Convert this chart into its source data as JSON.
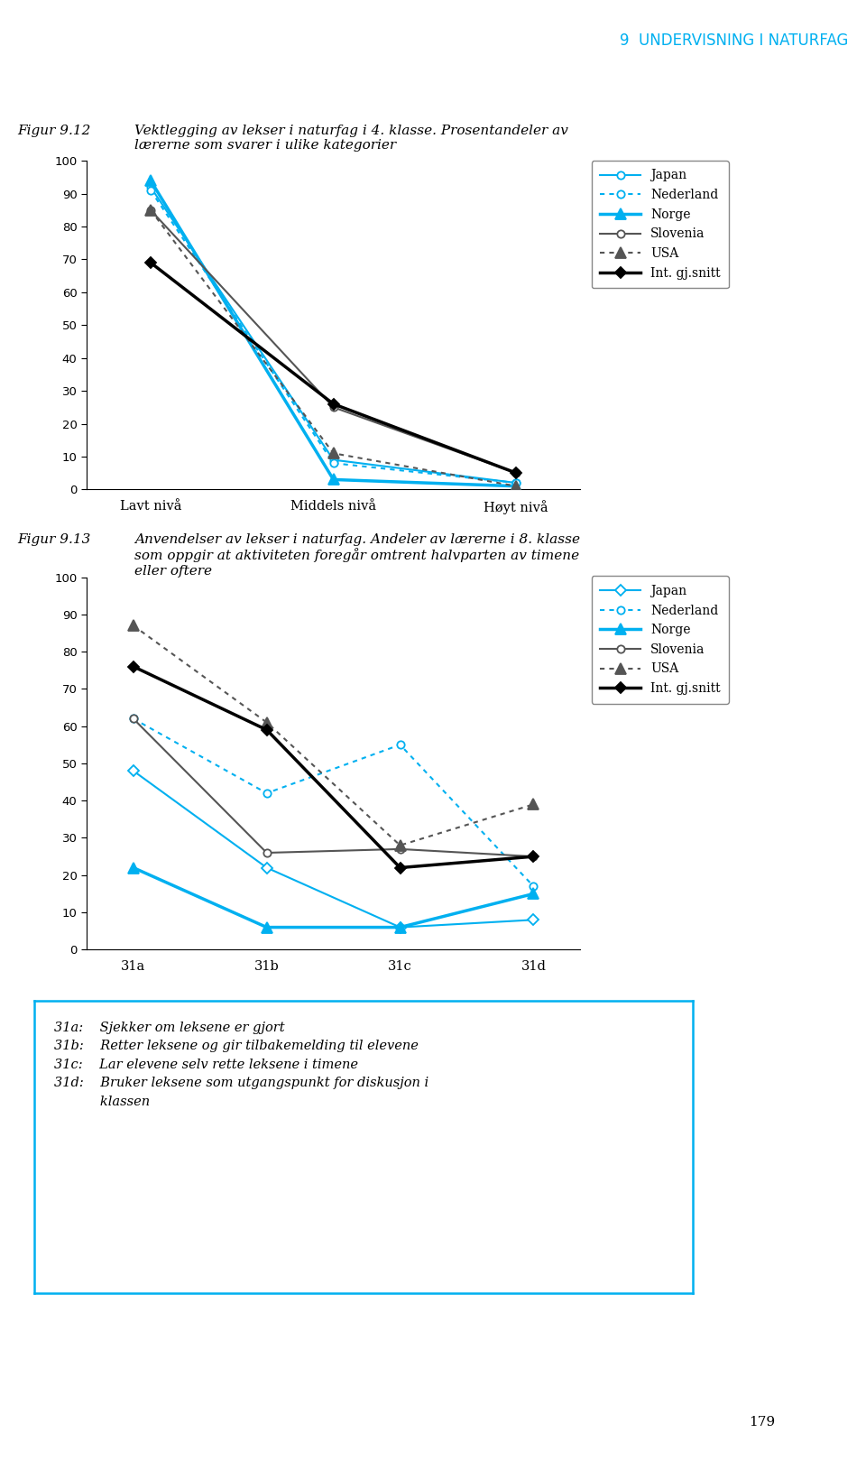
{
  "header_num": "9",
  "header_text": "Undervisning i naturfag",
  "fig1": {
    "fig_label": "Figur 9.12",
    "caption_line1": "Vektlegging av lekser i naturfag i 4. klasse. Prosentandeler av",
    "caption_line2": "lærerne som svarer i ulike kategorier",
    "x_labels": [
      "Lavt nivå",
      "Middels nivå",
      "Høyt nivå"
    ],
    "ylim": [
      0,
      100
    ],
    "yticks": [
      0,
      10,
      20,
      30,
      40,
      50,
      60,
      70,
      80,
      90,
      100
    ],
    "series": {
      "Japan": {
        "color": "#00B0F0",
        "linestyle": "solid",
        "marker": "o",
        "markersize": 6,
        "markerfacecolor": "white",
        "linewidth": 1.5,
        "values": [
          92,
          9,
          2
        ]
      },
      "Nederland": {
        "color": "#00B0F0",
        "linestyle": "dotted",
        "marker": "o",
        "markersize": 6,
        "markerfacecolor": "white",
        "linewidth": 1.5,
        "values": [
          91,
          8,
          2
        ]
      },
      "Norge": {
        "color": "#00B0F0",
        "linestyle": "solid",
        "marker": "^",
        "markersize": 8,
        "markerfacecolor": "#00B0F0",
        "linewidth": 2.5,
        "values": [
          94,
          3,
          1
        ]
      },
      "Slovenia": {
        "color": "#555555",
        "linestyle": "solid",
        "marker": "o",
        "markersize": 6,
        "markerfacecolor": "white",
        "linewidth": 1.5,
        "values": [
          85,
          25,
          5
        ]
      },
      "USA": {
        "color": "#555555",
        "linestyle": "dotted",
        "marker": "^",
        "markersize": 8,
        "markerfacecolor": "#555555",
        "linewidth": 1.5,
        "values": [
          85,
          11,
          1
        ]
      },
      "Int. gj.snitt": {
        "color": "#000000",
        "linestyle": "solid",
        "marker": "D",
        "markersize": 6,
        "markerfacecolor": "#000000",
        "linewidth": 2.5,
        "values": [
          69,
          26,
          5
        ]
      }
    }
  },
  "fig2": {
    "fig_label": "Figur 9.13",
    "caption_line1": "Anvendelser av lekser i naturfag. Andeler av lærerne i 8. klasse",
    "caption_line2": "som oppgir at aktiviteten foregår omtrent halvparten av timene",
    "caption_line3": "eller oftere",
    "x_labels": [
      "31a",
      "31b",
      "31c",
      "31d"
    ],
    "ylim": [
      0,
      100
    ],
    "yticks": [
      0,
      10,
      20,
      30,
      40,
      50,
      60,
      70,
      80,
      90,
      100
    ],
    "series": {
      "Japan": {
        "color": "#00B0F0",
        "linestyle": "solid",
        "marker": "D",
        "markersize": 6,
        "markerfacecolor": "white",
        "linewidth": 1.5,
        "values": [
          48,
          22,
          6,
          8
        ]
      },
      "Nederland": {
        "color": "#00B0F0",
        "linestyle": "dotted",
        "marker": "o",
        "markersize": 6,
        "markerfacecolor": "white",
        "linewidth": 1.5,
        "values": [
          62,
          42,
          55,
          17
        ]
      },
      "Norge": {
        "color": "#00B0F0",
        "linestyle": "solid",
        "marker": "^",
        "markersize": 8,
        "markerfacecolor": "#00B0F0",
        "linewidth": 2.5,
        "values": [
          22,
          6,
          6,
          15
        ]
      },
      "Slovenia": {
        "color": "#555555",
        "linestyle": "solid",
        "marker": "o",
        "markersize": 6,
        "markerfacecolor": "white",
        "linewidth": 1.5,
        "values": [
          62,
          26,
          27,
          25
        ]
      },
      "USA": {
        "color": "#555555",
        "linestyle": "dotted",
        "marker": "^",
        "markersize": 8,
        "markerfacecolor": "#555555",
        "linewidth": 1.5,
        "values": [
          87,
          61,
          28,
          39
        ]
      },
      "Int. gj.snitt": {
        "color": "#000000",
        "linestyle": "solid",
        "marker": "D",
        "markersize": 6,
        "markerfacecolor": "#000000",
        "linewidth": 2.5,
        "values": [
          76,
          59,
          22,
          25
        ]
      }
    },
    "footnote_lines": [
      "31a:    Sjekker om leksene er gjort",
      "31b:    Retter leksene og gir tilbakemelding til elevene",
      "31c:    Lar elevene selv rette leksene i timene",
      "31d:    Bruker leksene som utgangspunkt for diskusjon i",
      "           klassen"
    ]
  },
  "page_number": "179",
  "bg_color": "#ffffff",
  "header_color": "#00B0F0",
  "footnote_box_color": "#00B0F0"
}
